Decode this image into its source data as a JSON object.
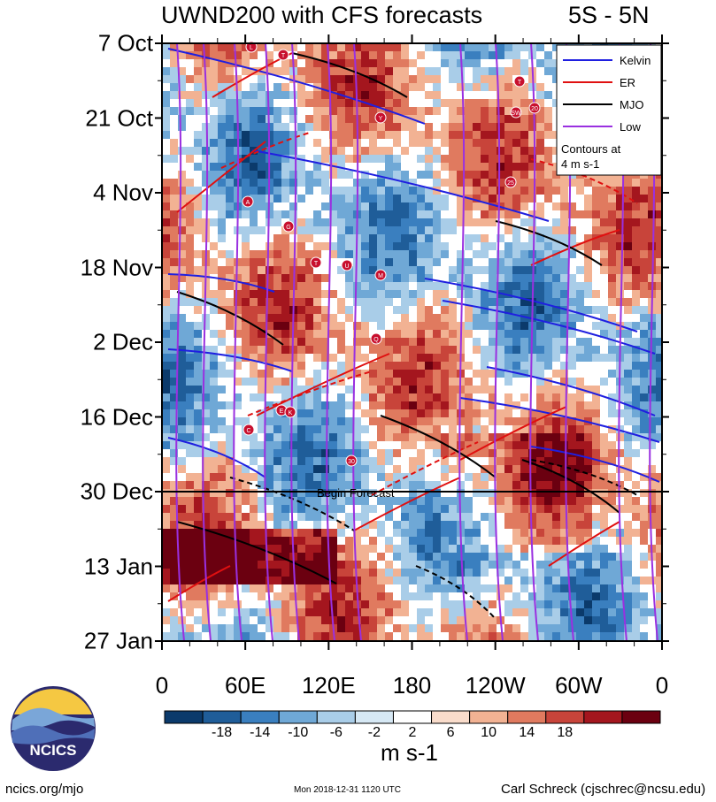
{
  "title_left": "UWND200 with CFS forecasts",
  "title_right": "5S - 5N",
  "y_ticks": [
    "7 Oct",
    "21 Oct",
    "4 Nov",
    "18 Nov",
    "2 Dec",
    "16 Dec",
    "30 Dec",
    "13 Jan",
    "27 Jan"
  ],
  "x_ticks": [
    "0",
    "60E",
    "120E",
    "180",
    "120W",
    "60W",
    "0"
  ],
  "begin_forecast_label": "Begin Forecast",
  "legend": {
    "items": [
      {
        "label": "Kelvin",
        "color": "#1f1fe0"
      },
      {
        "label": "ER",
        "color": "#e01010"
      },
      {
        "label": "MJO",
        "color": "#000000"
      },
      {
        "label": "Low",
        "color": "#9a30e0"
      }
    ],
    "note_line1": "Contours at",
    "note_line2": "4 m s-1"
  },
  "colorbar": {
    "labels": [
      "-18",
      "-14",
      "-10",
      "-6",
      "-2",
      "2",
      "6",
      "10",
      "14",
      "18"
    ],
    "colors": [
      "#0b3a6b",
      "#1f5d99",
      "#3a7fbf",
      "#6fa8d6",
      "#a9cde8",
      "#d6e8f4",
      "#ffffff",
      "#f9dccb",
      "#f2b293",
      "#e07a5f",
      "#c8443a",
      "#a4161e",
      "#6b0010"
    ],
    "units": "m s-1"
  },
  "logo_text": "NCICS",
  "footer": {
    "left": "ncics.org/mjo",
    "middle": "Mon 2018-12-31 1120 UTC",
    "right": "Carl Schreck (cjschrec@ncsu.edu)"
  },
  "storm_markers": [
    "L",
    "T",
    "T",
    "Y",
    "SW",
    "20",
    "25",
    "A",
    "G",
    "T",
    "U",
    "M",
    "Q",
    "E",
    "K",
    "C",
    "30"
  ],
  "chart_data": {
    "type": "heatmap",
    "title": "UWND200 with CFS forecasts",
    "region": "5S - 5N",
    "x_axis": "longitude",
    "x_ticks": [
      "0",
      "60E",
      "120E",
      "180",
      "120W",
      "60W",
      "0"
    ],
    "y_axis": "time",
    "y_ticks": [
      "7 Oct",
      "21 Oct",
      "4 Nov",
      "18 Nov",
      "2 Dec",
      "16 Dec",
      "30 Dec",
      "13 Jan",
      "27 Jan"
    ],
    "forecast_start": "30 Dec",
    "colorbar_range": [
      -18,
      18
    ],
    "colorbar_units": "m s-1",
    "contour_interval": "4 m s-1",
    "series": [
      {
        "name": "Kelvin",
        "color": "#1f1fe0"
      },
      {
        "name": "ER",
        "color": "#e01010"
      },
      {
        "name": "MJO",
        "color": "#000000"
      },
      {
        "name": "Low",
        "color": "#9a30e0"
      }
    ],
    "legend_position": "top-right"
  }
}
